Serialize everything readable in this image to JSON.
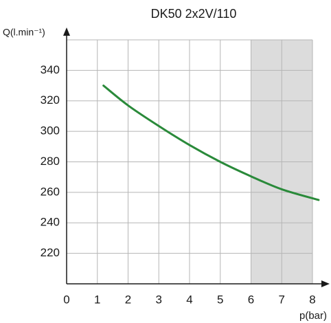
{
  "chart_data": {
    "type": "line",
    "title": "DK50 2x2V/110",
    "y_label": "Q(l.min⁻¹)",
    "x_label": "p(bar)",
    "x": [
      1.2,
      2,
      3,
      4,
      5,
      6,
      7,
      8.2
    ],
    "series": [
      {
        "name": "DK50 2x2V/110",
        "color": "#2a8a3a",
        "values": [
          330,
          317,
          303.5,
          291,
          280,
          270.5,
          262,
          255
        ]
      }
    ],
    "xlim": [
      0,
      8
    ],
    "ylim": [
      200,
      360
    ],
    "xticks": [
      0,
      1,
      2,
      3,
      4,
      5,
      6,
      7,
      8
    ],
    "yticks": [
      220,
      240,
      260,
      280,
      300,
      320,
      340
    ],
    "grid": true,
    "shaded_region": {
      "x": [
        6,
        8
      ],
      "color": "#dcdcdc"
    }
  }
}
